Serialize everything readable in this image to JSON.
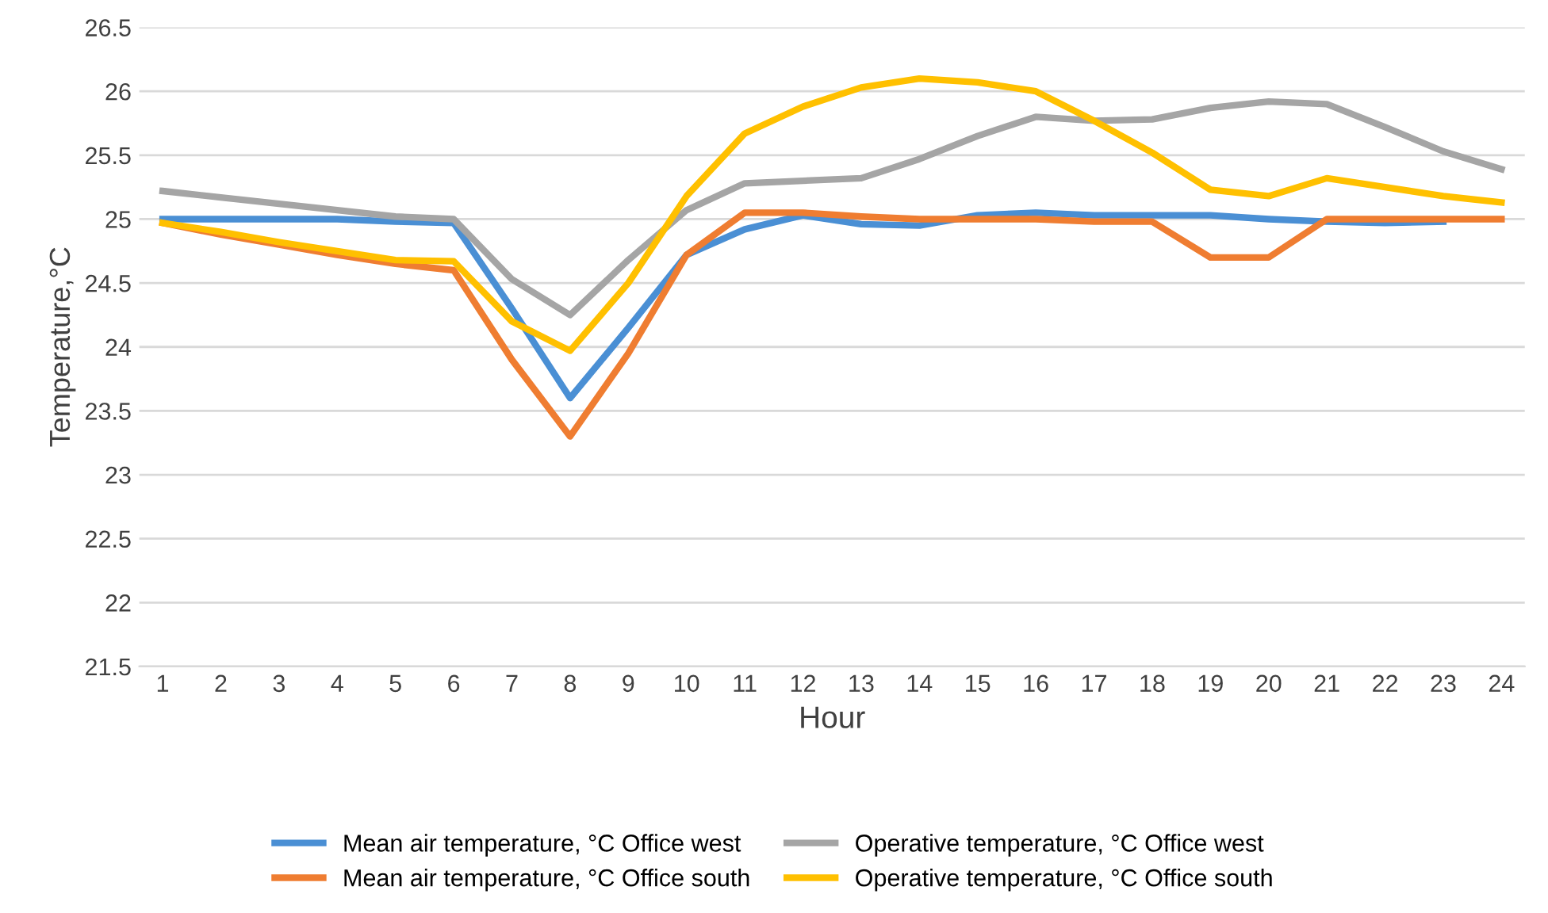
{
  "chart_data": {
    "type": "line",
    "xlabel": "Hour",
    "ylabel": "Temperature,°C",
    "categories": [
      "1",
      "2",
      "3",
      "4",
      "5",
      "6",
      "7",
      "8",
      "9",
      "10",
      "11",
      "12",
      "13",
      "14",
      "15",
      "16",
      "17",
      "18",
      "19",
      "20",
      "21",
      "22",
      "23",
      "24"
    ],
    "series": [
      {
        "name": "Mean air temperature, °C Office west",
        "color": "#4a8fd4",
        "values": [
          25,
          25,
          25,
          25,
          24.98,
          24.97,
          24.3,
          23.6,
          24.15,
          24.72,
          24.92,
          25.03,
          24.96,
          24.95,
          25.03,
          25.05,
          25.03,
          25.03,
          25.03,
          25.0,
          24.98,
          24.97,
          24.98,
          null
        ]
      },
      {
        "name": "Mean air temperature, °C Office south",
        "color": "#ef7d31",
        "values": [
          24.97,
          24.88,
          24.8,
          24.72,
          24.65,
          24.6,
          23.9,
          23.3,
          23.95,
          24.72,
          25.05,
          25.05,
          25.02,
          25.0,
          25.0,
          25.0,
          24.98,
          24.98,
          24.7,
          24.7,
          25.0,
          25.0,
          25.0,
          25.0
        ]
      },
      {
        "name": "Operative temperature, °C Office west",
        "color": "#a5a5a5",
        "values": [
          25.22,
          25.17,
          25.12,
          25.07,
          25.02,
          25.0,
          24.53,
          24.25,
          24.68,
          25.07,
          25.28,
          25.3,
          25.32,
          25.47,
          25.65,
          25.8,
          25.77,
          25.78,
          25.87,
          25.92,
          25.9,
          25.72,
          25.53,
          25.39
        ]
      },
      {
        "name": "Operative temperature, °C Office south",
        "color": "#ffc000",
        "values": [
          24.97,
          24.9,
          24.82,
          24.75,
          24.68,
          24.67,
          24.2,
          23.97,
          24.5,
          25.18,
          25.67,
          25.88,
          26.03,
          26.1,
          26.07,
          26.0,
          25.77,
          25.52,
          25.23,
          25.18,
          25.32,
          25.25,
          25.18,
          25.13
        ]
      }
    ],
    "ylim": [
      21.5,
      26.5
    ],
    "yticks": [
      21.5,
      22,
      22.5,
      23,
      23.5,
      24,
      24.5,
      25,
      25.5,
      26,
      26.5
    ],
    "grid": "y",
    "legend": "bottom",
    "marker": "none",
    "line_style": "solid"
  }
}
